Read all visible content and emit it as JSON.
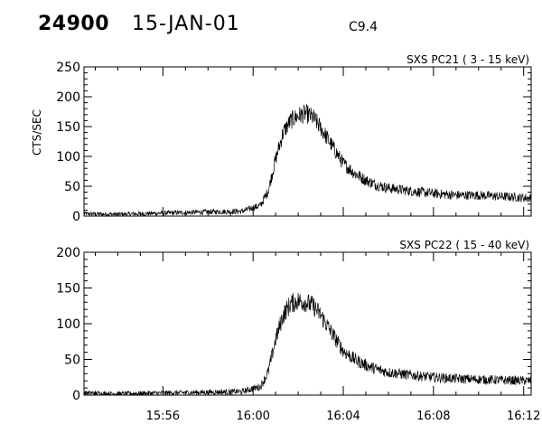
{
  "header": {
    "event_id": "24900",
    "date": "15-JAN-01",
    "flare_class": "C9.4"
  },
  "chart_data": [
    {
      "type": "line",
      "title": "SXS PC21  (  3 - 15 keV)",
      "ylabel": "CTS/SEC",
      "xlabel": "",
      "xlim": [
        "15:52:30",
        "16:12:20"
      ],
      "ylim": [
        0,
        250
      ],
      "y_ticks": [
        0,
        50,
        100,
        150,
        200,
        250
      ],
      "x_ticks": [
        "15:56",
        "16:00",
        "16:04",
        "16:08",
        "16:12"
      ],
      "grid": false,
      "series": [
        {
          "x": [
            "15:52:30",
            "15:54:00",
            "15:56:00",
            "15:58:00",
            "15:59:30",
            "16:00:20",
            "16:00:40",
            "16:01:00",
            "16:01:20",
            "16:01:40",
            "16:02:00",
            "16:02:20",
            "16:02:40",
            "16:03:00",
            "16:03:20",
            "16:03:40",
            "16:04:00",
            "16:04:30",
            "16:05:00",
            "16:05:30",
            "16:06:00",
            "16:07:00",
            "16:08:00",
            "16:09:00",
            "16:10:00",
            "16:11:00",
            "16:12:20"
          ],
          "y": [
            4,
            3,
            5,
            7,
            8,
            18,
            42,
            95,
            140,
            160,
            168,
            172,
            165,
            148,
            128,
            108,
            88,
            72,
            60,
            52,
            47,
            42,
            38,
            35,
            35,
            33,
            30
          ]
        }
      ]
    },
    {
      "type": "line",
      "title": "SXS PC22  ( 15 - 40 keV)",
      "ylabel": "",
      "xlabel": "",
      "xlim": [
        "15:52:30",
        "16:12:20"
      ],
      "ylim": [
        0,
        200
      ],
      "y_ticks": [
        0,
        50,
        100,
        150,
        200
      ],
      "x_ticks": [
        "15:56",
        "16:00",
        "16:04",
        "16:08",
        "16:12"
      ],
      "grid": false,
      "series": [
        {
          "x": [
            "15:52:30",
            "15:54:00",
            "15:56:00",
            "15:58:00",
            "15:59:30",
            "16:00:20",
            "16:00:40",
            "16:01:00",
            "16:01:20",
            "16:01:40",
            "16:02:00",
            "16:02:20",
            "16:02:40",
            "16:03:00",
            "16:03:20",
            "16:03:40",
            "16:04:00",
            "16:04:30",
            "16:05:00",
            "16:05:30",
            "16:06:00",
            "16:07:00",
            "16:08:00",
            "16:09:00",
            "16:10:00",
            "16:11:00",
            "16:12:20"
          ],
          "y": [
            3,
            2,
            3,
            4,
            5,
            12,
            32,
            78,
            112,
            128,
            132,
            130,
            125,
            112,
            95,
            78,
            62,
            50,
            42,
            36,
            32,
            28,
            25,
            23,
            22,
            21,
            20
          ]
        }
      ]
    }
  ]
}
